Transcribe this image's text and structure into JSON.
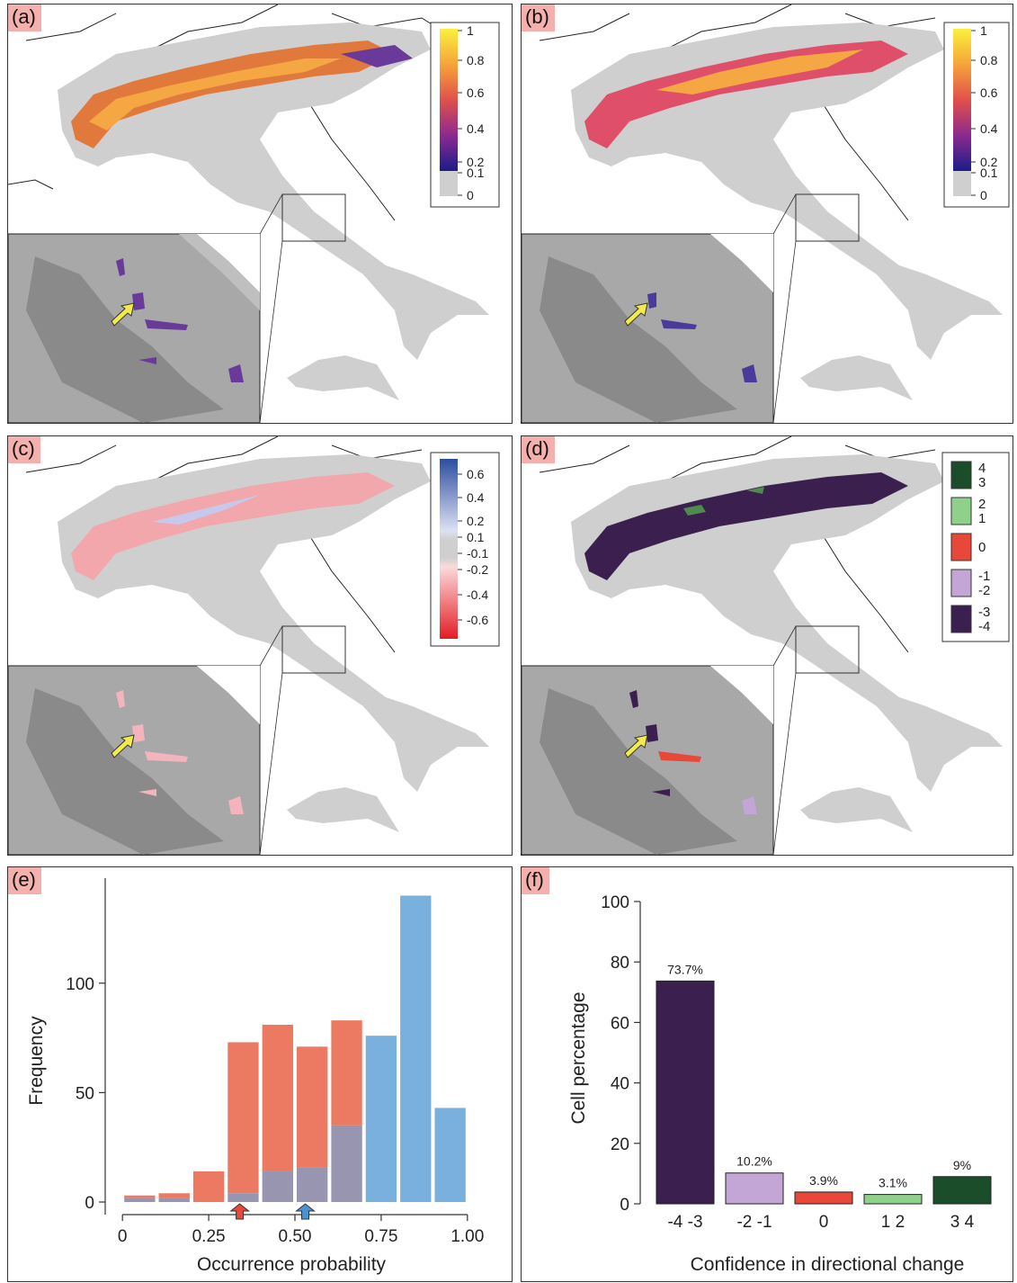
{
  "panels": {
    "a": {
      "label": "(a)"
    },
    "b": {
      "label": "(b)"
    },
    "c": {
      "label": "(c)"
    },
    "d": {
      "label": "(d)"
    },
    "e": {
      "label": "(e)"
    },
    "f": {
      "label": "(f)"
    }
  },
  "legends": {
    "probability": {
      "ticks": [
        "1",
        "0.8",
        "0.6",
        "0.4",
        "0.2",
        "0.1",
        "0"
      ]
    },
    "difference": {
      "ticks": [
        "0.6",
        "0.4",
        "0.2",
        "0.1",
        "-0.1",
        "-0.2",
        "-0.4",
        "-0.6"
      ]
    },
    "confidence": {
      "entries": [
        {
          "labels": [
            "4",
            "3"
          ],
          "color": "#1b4d2b"
        },
        {
          "labels": [
            "2",
            "1"
          ],
          "color": "#8fd18a"
        },
        {
          "labels": [
            "0"
          ],
          "color": "#e8483a"
        },
        {
          "labels": [
            "-1",
            "-2"
          ],
          "color": "#c4a6d6"
        },
        {
          "labels": [
            "-3",
            "-4"
          ],
          "color": "#3a1f4f"
        }
      ]
    }
  },
  "colors": {
    "land": "#cfcfcf",
    "hist_red": "#ec7a62",
    "hist_blue": "#79b0dd",
    "hist_overlap": "#9895b1",
    "arrow_red": "#e8483a",
    "arrow_blue": "#4b93d0",
    "inset_arrow": "#f3ea4b"
  },
  "chart_data": [
    {
      "type": "bar",
      "panel": "e",
      "xlabel": "Occurrence probability",
      "ylabel": "Frequency",
      "xlim": [
        -0.05,
        1.05
      ],
      "ylim": [
        0,
        148
      ],
      "xticks": [
        "0",
        "0.25",
        "0.50",
        "0.75",
        "1.00"
      ],
      "yticks": [
        "0",
        "50",
        "100"
      ],
      "bin_width": 0.1,
      "bin_starts": [
        0.0,
        0.1,
        0.2,
        0.3,
        0.4,
        0.5,
        0.6,
        0.7,
        0.8,
        0.9
      ],
      "series": [
        {
          "color": "red",
          "values": [
            3,
            4,
            14,
            73,
            81,
            71,
            83,
            0,
            0,
            0
          ]
        },
        {
          "color": "blue",
          "values": [
            2,
            2,
            0,
            4,
            14,
            16,
            35,
            76,
            140,
            43
          ]
        }
      ],
      "markers": [
        {
          "color": "red",
          "x": 0.34
        },
        {
          "color": "blue",
          "x": 0.53
        }
      ]
    },
    {
      "type": "bar",
      "panel": "f",
      "xlabel": "Confidence in directional change",
      "ylabel": "Cell percentage",
      "ylim": [
        0,
        100
      ],
      "yticks": [
        "0",
        "20",
        "40",
        "60",
        "80",
        "100"
      ],
      "categories": [
        "-4   -3",
        "-2   -1",
        "0",
        "1   2",
        "3   4"
      ],
      "values": [
        73.7,
        10.2,
        3.9,
        3.1,
        9
      ],
      "data_labels": [
        "73.7%",
        "10.2%",
        "3.9%",
        "3.1%",
        "9%"
      ],
      "colors": [
        "#3a1f4f",
        "#c4a6d6",
        "#e8483a",
        "#8fd18a",
        "#1b4d2b"
      ]
    }
  ]
}
